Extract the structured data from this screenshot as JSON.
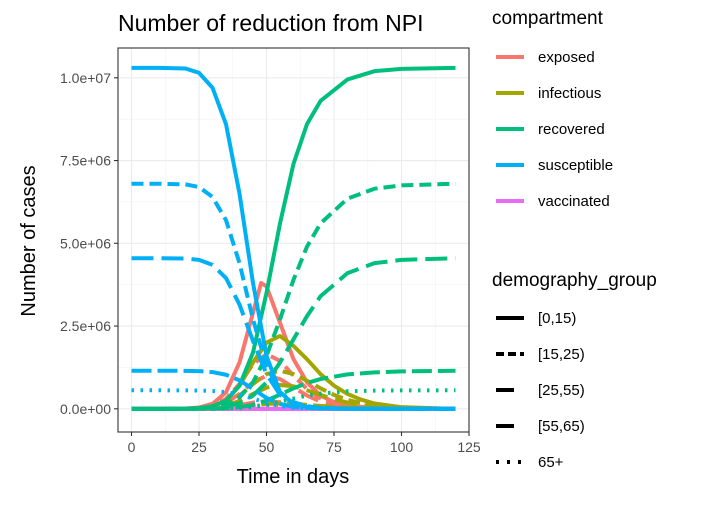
{
  "chart_data": {
    "type": "line",
    "title": "Number of reduction from NPI",
    "xlabel": "Time in days",
    "ylabel": "Number of cases",
    "xlim": [
      -5,
      125
    ],
    "ylim": [
      -700000,
      10900000
    ],
    "x_ticks": [
      0,
      25,
      50,
      75,
      100,
      125
    ],
    "x_tick_labels": [
      "0",
      "25",
      "50",
      "75",
      "100",
      "125"
    ],
    "y_ticks": [
      0,
      2500000,
      5000000,
      7500000,
      10000000
    ],
    "y_tick_labels": [
      "0.0e+00",
      "2.5e+06",
      "5.0e+06",
      "7.5e+06",
      "1.0e+07"
    ],
    "grid": true,
    "legend_placement": "right",
    "legend_color_title": "compartment",
    "legend_linetype_title": "demography_group",
    "compartments": [
      {
        "name": "exposed",
        "color": "#F8766D"
      },
      {
        "name": "infectious",
        "color": "#A3A500"
      },
      {
        "name": "recovered",
        "color": "#00BF7D"
      },
      {
        "name": "susceptible",
        "color": "#00B0F6"
      },
      {
        "name": "vaccinated",
        "color": "#E76BF3"
      }
    ],
    "groups": [
      {
        "name": "[0,15)",
        "dash": "solid",
        "population": 10300000,
        "peak_day": 48
      },
      {
        "name": "[15,25)",
        "dash": "dashed",
        "population": 6800000,
        "peak_day": 50
      },
      {
        "name": "[25,55)",
        "dash": "longdash",
        "population": 1150000,
        "peak_day": 52
      },
      {
        "name": "[55,65)",
        "dash": "longdash2",
        "population": 4550000,
        "peak_day": 54
      },
      {
        "name": "65+",
        "dash": "dotted",
        "population": 560000,
        "peak_day": 57
      }
    ],
    "series": [
      {
        "compartment": "susceptible",
        "group": "[0,15)",
        "x": [
          0,
          10,
          20,
          25,
          30,
          35,
          40,
          45,
          50,
          55,
          60,
          65,
          70,
          80,
          90,
          100,
          120
        ],
        "y": [
          10300000,
          10300000,
          10280000,
          10150000,
          9700000,
          8600000,
          6500000,
          3800000,
          1600000,
          500000,
          150000,
          50000,
          20000,
          5000,
          2000,
          1000,
          500
        ]
      },
      {
        "compartment": "recovered",
        "group": "[0,15)",
        "x": [
          0,
          10,
          20,
          25,
          30,
          35,
          40,
          45,
          50,
          55,
          60,
          65,
          70,
          80,
          90,
          100,
          120
        ],
        "y": [
          0,
          0,
          5000,
          20000,
          70000,
          250000,
          700000,
          1700000,
          3500000,
          5600000,
          7400000,
          8600000,
          9300000,
          9950000,
          10200000,
          10270000,
          10300000
        ]
      },
      {
        "compartment": "exposed",
        "group": "[0,15)",
        "x": [
          0,
          20,
          25,
          30,
          35,
          40,
          45,
          48,
          50,
          55,
          60,
          65,
          70,
          75,
          80,
          90,
          100,
          120
        ],
        "y": [
          0,
          10000,
          40000,
          150000,
          500000,
          1400000,
          2900000,
          3800000,
          3700000,
          2600000,
          1500000,
          800000,
          400000,
          200000,
          100000,
          20000,
          5000,
          0
        ]
      },
      {
        "compartment": "infectious",
        "group": "[0,15)",
        "x": [
          0,
          20,
          25,
          30,
          35,
          40,
          45,
          50,
          55,
          60,
          65,
          70,
          75,
          80,
          85,
          90,
          100,
          120
        ],
        "y": [
          0,
          5000,
          20000,
          70000,
          250000,
          700000,
          1400000,
          2000000,
          2200000,
          1900000,
          1500000,
          1050000,
          700000,
          450000,
          280000,
          160000,
          50000,
          0
        ]
      },
      {
        "compartment": "vaccinated",
        "group": "[0,15)",
        "x": [
          0,
          120
        ],
        "y": [
          0,
          0
        ]
      },
      {
        "compartment": "susceptible",
        "group": "[15,25)",
        "x": [
          0,
          10,
          20,
          25,
          30,
          35,
          40,
          45,
          50,
          55,
          60,
          65,
          70,
          80,
          90,
          100,
          120
        ],
        "y": [
          6800000,
          6800000,
          6780000,
          6700000,
          6400000,
          5700000,
          4400000,
          2700000,
          1300000,
          500000,
          200000,
          80000,
          30000,
          8000,
          3000,
          1000,
          500
        ]
      },
      {
        "compartment": "recovered",
        "group": "[15,25)",
        "x": [
          0,
          10,
          20,
          25,
          30,
          35,
          40,
          45,
          50,
          55,
          60,
          65,
          70,
          80,
          90,
          100,
          120
        ],
        "y": [
          0,
          0,
          2000,
          10000,
          40000,
          120000,
          350000,
          800000,
          1600000,
          2700000,
          3900000,
          4900000,
          5600000,
          6350000,
          6650000,
          6750000,
          6800000
        ]
      },
      {
        "compartment": "exposed",
        "group": "[15,25)",
        "x": [
          0,
          20,
          25,
          30,
          35,
          40,
          45,
          50,
          55,
          60,
          65,
          70,
          75,
          80,
          90,
          100,
          120
        ],
        "y": [
          0,
          8000,
          30000,
          100000,
          300000,
          750000,
          1350000,
          1650000,
          1450000,
          1000000,
          600000,
          320000,
          160000,
          80000,
          20000,
          5000,
          0
        ]
      },
      {
        "compartment": "infectious",
        "group": "[15,25)",
        "x": [
          0,
          20,
          25,
          30,
          35,
          40,
          45,
          50,
          55,
          60,
          65,
          70,
          75,
          80,
          85,
          90,
          100,
          120
        ],
        "y": [
          0,
          4000,
          15000,
          50000,
          150000,
          400000,
          750000,
          1050000,
          1150000,
          1050000,
          850000,
          620000,
          420000,
          270000,
          170000,
          100000,
          30000,
          0
        ]
      },
      {
        "compartment": "vaccinated",
        "group": "[15,25)",
        "x": [
          0,
          120
        ],
        "y": [
          0,
          0
        ]
      },
      {
        "compartment": "susceptible",
        "group": "[25,55)",
        "x": [
          0,
          10,
          20,
          25,
          30,
          35,
          40,
          45,
          50,
          55,
          60,
          65,
          70,
          80,
          90,
          100,
          120
        ],
        "y": [
          1150000,
          1150000,
          1148000,
          1140000,
          1110000,
          1030000,
          860000,
          600000,
          330000,
          150000,
          60000,
          25000,
          10000,
          3000,
          1000,
          500,
          0
        ]
      },
      {
        "compartment": "recovered",
        "group": "[25,55)",
        "x": [
          0,
          10,
          20,
          25,
          30,
          35,
          40,
          45,
          50,
          55,
          60,
          65,
          70,
          80,
          90,
          100,
          120
        ],
        "y": [
          0,
          0,
          500,
          2000,
          6000,
          18000,
          50000,
          120000,
          250000,
          430000,
          620000,
          780000,
          900000,
          1040000,
          1100000,
          1130000,
          1150000
        ]
      },
      {
        "compartment": "exposed",
        "group": "[25,55)",
        "x": [
          0,
          25,
          30,
          35,
          40,
          45,
          50,
          55,
          60,
          65,
          70,
          80,
          90,
          120
        ],
        "y": [
          0,
          5000,
          15000,
          45000,
          110000,
          190000,
          230000,
          200000,
          140000,
          85000,
          45000,
          12000,
          3000,
          0
        ]
      },
      {
        "compartment": "infectious",
        "group": "[25,55)",
        "x": [
          0,
          25,
          30,
          35,
          40,
          45,
          50,
          55,
          60,
          65,
          70,
          75,
          80,
          90,
          100,
          120
        ],
        "y": [
          0,
          3000,
          8000,
          25000,
          60000,
          110000,
          150000,
          165000,
          150000,
          120000,
          90000,
          60000,
          38000,
          14000,
          4000,
          0
        ]
      },
      {
        "compartment": "vaccinated",
        "group": "[25,55)",
        "x": [
          0,
          120
        ],
        "y": [
          0,
          0
        ]
      },
      {
        "compartment": "susceptible",
        "group": "[55,65)",
        "x": [
          0,
          10,
          20,
          25,
          30,
          35,
          40,
          45,
          50,
          55,
          60,
          65,
          70,
          80,
          90,
          100,
          120
        ],
        "y": [
          4550000,
          4550000,
          4540000,
          4500000,
          4350000,
          3950000,
          3150000,
          2050000,
          1050000,
          430000,
          160000,
          60000,
          20000,
          5000,
          2000,
          1000,
          500
        ]
      },
      {
        "compartment": "recovered",
        "group": "[55,65)",
        "x": [
          0,
          10,
          20,
          25,
          30,
          35,
          40,
          45,
          50,
          55,
          60,
          65,
          70,
          80,
          90,
          100,
          120
        ],
        "y": [
          0,
          0,
          1000,
          5000,
          20000,
          60000,
          170000,
          400000,
          800000,
          1400000,
          2100000,
          2800000,
          3400000,
          4100000,
          4400000,
          4500000,
          4550000
        ]
      },
      {
        "compartment": "exposed",
        "group": "[55,65)",
        "x": [
          0,
          20,
          25,
          30,
          35,
          40,
          45,
          50,
          55,
          60,
          65,
          70,
          75,
          80,
          90,
          100,
          120
        ],
        "y": [
          0,
          5000,
          20000,
          60000,
          180000,
          450000,
          800000,
          1000000,
          900000,
          650000,
          400000,
          220000,
          110000,
          55000,
          12000,
          3000,
          0
        ]
      },
      {
        "compartment": "infectious",
        "group": "[55,65)",
        "x": [
          0,
          20,
          25,
          30,
          35,
          40,
          45,
          50,
          55,
          60,
          65,
          70,
          75,
          80,
          85,
          90,
          100,
          120
        ],
        "y": [
          0,
          3000,
          10000,
          30000,
          90000,
          240000,
          450000,
          640000,
          720000,
          680000,
          560000,
          420000,
          290000,
          190000,
          120000,
          70000,
          20000,
          0
        ]
      },
      {
        "compartment": "vaccinated",
        "group": "[55,65)",
        "x": [
          0,
          120
        ],
        "y": [
          0,
          0
        ]
      },
      {
        "compartment": "susceptible",
        "group": "65+",
        "x": [
          0,
          10,
          20,
          25,
          30,
          35,
          40,
          45,
          50,
          55,
          60,
          65,
          70,
          80,
          90,
          100,
          120
        ],
        "y": [
          560000,
          560000,
          558000,
          553000,
          540000,
          505000,
          430000,
          310000,
          180000,
          85000,
          35000,
          13000,
          5000,
          1500,
          500,
          200,
          0
        ]
      },
      {
        "compartment": "recovered",
        "group": "65+",
        "x": [
          0,
          10,
          20,
          25,
          30,
          35,
          40,
          45,
          50,
          55,
          60,
          65,
          70,
          80,
          90,
          100,
          120
        ],
        "y": [
          0,
          0,
          200,
          800,
          3000,
          9000,
          25000,
          60000,
          120000,
          210000,
          310000,
          400000,
          460000,
          530000,
          550000,
          557000,
          560000
        ]
      },
      {
        "compartment": "exposed",
        "group": "65+",
        "x": [
          0,
          25,
          30,
          35,
          40,
          45,
          50,
          55,
          60,
          65,
          70,
          80,
          90,
          120
        ],
        "y": [
          0,
          2000,
          7000,
          20000,
          50000,
          90000,
          110000,
          100000,
          75000,
          45000,
          25000,
          7000,
          2000,
          0
        ]
      },
      {
        "compartment": "infectious",
        "group": "65+",
        "x": [
          0,
          25,
          30,
          35,
          40,
          45,
          50,
          55,
          60,
          65,
          70,
          75,
          80,
          90,
          100,
          120
        ],
        "y": [
          0,
          1000,
          4000,
          12000,
          30000,
          55000,
          75000,
          82000,
          75000,
          60000,
          45000,
          30000,
          20000,
          7000,
          2000,
          0
        ]
      },
      {
        "compartment": "vaccinated",
        "group": "65+",
        "x": [
          0,
          120
        ],
        "y": [
          0,
          0
        ]
      }
    ]
  }
}
